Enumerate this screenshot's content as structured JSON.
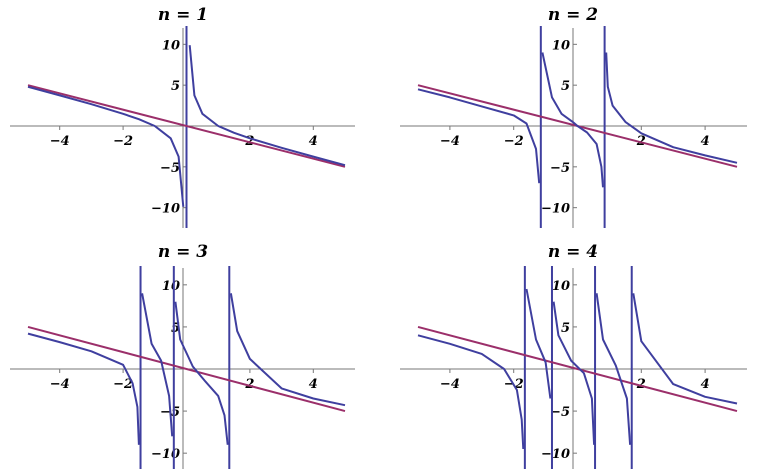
{
  "chart_data": [
    {
      "type": "line",
      "title": "n = 1",
      "n": 1,
      "xlim": [
        -5,
        5
      ],
      "ylim": [
        -12,
        12
      ],
      "x_ticks": [
        -4,
        -2,
        2,
        4
      ],
      "x_tick_labels": [
        "−4",
        "−2",
        "2",
        "4"
      ],
      "y_ticks": [
        -10,
        -5,
        5,
        10
      ],
      "y_tick_labels": [
        "−10",
        "−5",
        "5",
        "10"
      ],
      "poles": [
        0
      ],
      "series_colors": [
        "#3f3f9f",
        "#9b2f6a"
      ],
      "series": [
        {
          "x": [
            -5,
            -4,
            -3,
            -2,
            -1.5,
            -1,
            -0.5,
            -0.25,
            -0.1,
            0.1,
            0.25,
            0.5,
            1,
            1.5,
            2,
            3,
            4,
            5
          ],
          "y": [
            4.8,
            3.75,
            2.67,
            1.5,
            0.83,
            0,
            -1.5,
            -3.75,
            -9.9,
            9.9,
            3.75,
            1.5,
            0,
            -0.83,
            -1.5,
            -2.67,
            -3.75,
            -4.8
          ]
        },
        {
          "x": [
            -5,
            5
          ],
          "y": [
            5,
            -5
          ]
        }
      ]
    },
    {
      "type": "line",
      "title": "n = 2",
      "n": 2,
      "xlim": [
        -5,
        5
      ],
      "ylim": [
        -12,
        12
      ],
      "x_ticks": [
        -4,
        -2,
        2,
        4
      ],
      "x_tick_labels": [
        "−4",
        "−2",
        "2",
        "4"
      ],
      "y_ticks": [
        -10,
        -5,
        5,
        10
      ],
      "y_tick_labels": [
        "−10",
        "−5",
        "5",
        "10"
      ],
      "poles": [
        -1.15,
        0.85
      ],
      "series_colors": [
        "#3f3f9f",
        "#9b2f6a"
      ],
      "series": [
        {
          "x": [
            -5,
            -4,
            -3,
            -2,
            -1.6,
            -1.3,
            -1.2,
            -1.1,
            -0.8,
            -0.5,
            -0.15,
            0,
            0.3,
            0.6,
            0.75,
            0.8,
            0.9,
            0.95,
            1.1,
            1.5,
            2,
            3,
            4,
            5
          ],
          "y": [
            4.5,
            3.5,
            2.4,
            1.3,
            0.3,
            -2.8,
            -7,
            9,
            3.5,
            1.5,
            0.5,
            0,
            -0.8,
            -2.2,
            -5,
            -7.5,
            9,
            4.8,
            2.5,
            0.5,
            -0.9,
            -2.6,
            -3.6,
            -4.5
          ]
        },
        {
          "x": [
            -5,
            5
          ],
          "y": [
            5,
            -5
          ]
        }
      ]
    },
    {
      "type": "line",
      "title": "n = 3",
      "n": 3,
      "xlim": [
        -5,
        5
      ],
      "ylim": [
        -12,
        12
      ],
      "x_ticks": [
        -4,
        -2,
        2,
        4
      ],
      "x_tick_labels": [
        "−4",
        "−2",
        "2",
        "4"
      ],
      "y_ticks": [
        -10,
        -5,
        5,
        10
      ],
      "y_tick_labels": [
        "−10",
        "−5",
        "5",
        "10"
      ],
      "poles": [
        -1.45,
        -0.4,
        1.35
      ],
      "series_colors": [
        "#3f3f9f",
        "#9b2f6a"
      ],
      "series": [
        {
          "x": [
            -5,
            -4,
            -3,
            -2,
            -1.7,
            -1.55,
            -1.5,
            -1.4,
            -1.1,
            -0.8,
            -0.55,
            -0.45,
            -0.35,
            -0.2,
            0.2,
            0.6,
            1.0,
            1.2,
            1.3,
            1.4,
            1.6,
            2,
            3,
            4,
            5
          ],
          "y": [
            4.2,
            3.2,
            2.1,
            0.5,
            -1.7,
            -4.5,
            -9,
            9,
            3,
            1,
            -3.2,
            -8,
            8,
            3.5,
            0.3,
            -1.5,
            -3.2,
            -5.5,
            -9,
            9,
            4.5,
            1.2,
            -2.3,
            -3.5,
            -4.3
          ]
        },
        {
          "x": [
            -5,
            5
          ],
          "y": [
            5,
            -5
          ]
        }
      ]
    },
    {
      "type": "line",
      "title": "n = 4",
      "n": 4,
      "xlim": [
        -5,
        5
      ],
      "ylim": [
        -12,
        12
      ],
      "x_ticks": [
        -4,
        -2,
        2,
        4
      ],
      "x_tick_labels": [
        "−4",
        "−2",
        "2",
        "4"
      ],
      "y_ticks": [
        -10,
        -5,
        5,
        10
      ],
      "y_tick_labels": [
        "−10",
        "−5",
        "5",
        "10"
      ],
      "poles": [
        -1.65,
        -0.8,
        0.55,
        1.7
      ],
      "series_colors": [
        "#3f3f9f",
        "#9b2f6a"
      ],
      "series": [
        {
          "x": [
            -5,
            -4,
            -3,
            -2.3,
            -1.9,
            -1.75,
            -1.7,
            -1.6,
            -1.3,
            -1.0,
            -0.85,
            -0.75,
            -0.6,
            -0.2,
            0.2,
            0.45,
            0.52,
            0.6,
            0.8,
            1.2,
            1.55,
            1.65,
            1.75,
            2.0,
            3,
            4,
            5
          ],
          "y": [
            4.0,
            3.0,
            1.8,
            0,
            -2.5,
            -6,
            -9.5,
            9.5,
            3.5,
            0.8,
            -3.5,
            8,
            4,
            1,
            -0.5,
            -3.5,
            -9,
            9,
            3.5,
            0.4,
            -3.5,
            -9,
            9,
            3.3,
            -1.8,
            -3.3,
            -4.1
          ]
        },
        {
          "x": [
            -5,
            5
          ],
          "y": [
            5,
            -5
          ]
        }
      ]
    }
  ]
}
